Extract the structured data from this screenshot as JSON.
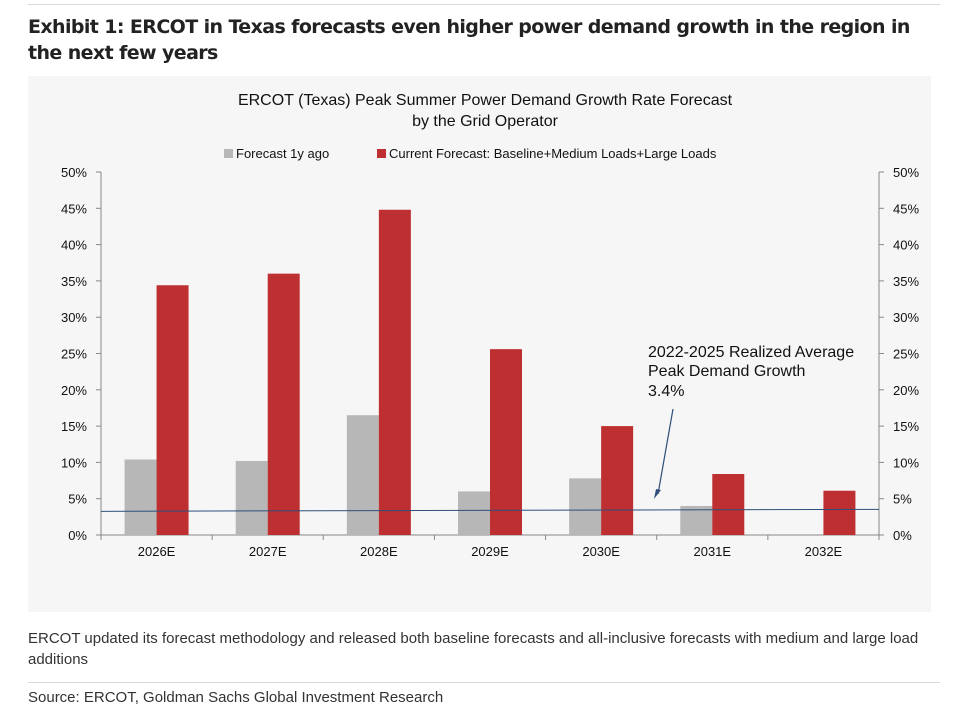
{
  "exhibit_title": "Exhibit 1: ERCOT in Texas forecasts even higher power demand growth in the region in the next few years",
  "note": "ERCOT updated its forecast methodology and released both baseline forecasts and all-inclusive forecasts with medium and large load additions",
  "source": "Source: ERCOT, Goldman Sachs Global Investment Research",
  "chart_data": {
    "type": "bar",
    "title_lines": [
      "ERCOT (Texas) Peak Summer Power Demand Growth Rate Forecast",
      "by the Grid Operator"
    ],
    "categories": [
      "2026E",
      "2027E",
      "2028E",
      "2029E",
      "2030E",
      "2031E",
      "2032E"
    ],
    "series": [
      {
        "name": "Forecast 1y ago",
        "color": "#b7b7b7",
        "values": [
          10.4,
          10.2,
          16.5,
          6.0,
          7.8,
          4.0,
          null
        ]
      },
      {
        "name": "Current Forecast: Baseline+Medium Loads+Large Loads",
        "color": "#be2f32",
        "values": [
          34.4,
          36.0,
          44.8,
          25.6,
          15.0,
          8.4,
          6.1
        ]
      }
    ],
    "reference_line": {
      "value": 3.4,
      "color": "#2e4f7a"
    },
    "annotation_lines": [
      "2022-2025 Realized Average",
      "Peak Demand Growth",
      "3.4%"
    ],
    "y_ticks": [
      "0%",
      "5%",
      "10%",
      "15%",
      "20%",
      "25%",
      "30%",
      "35%",
      "40%",
      "45%",
      "50%"
    ],
    "ylim": [
      0,
      50
    ],
    "legend_position": "top",
    "secondary_axis": true,
    "grid": false
  }
}
